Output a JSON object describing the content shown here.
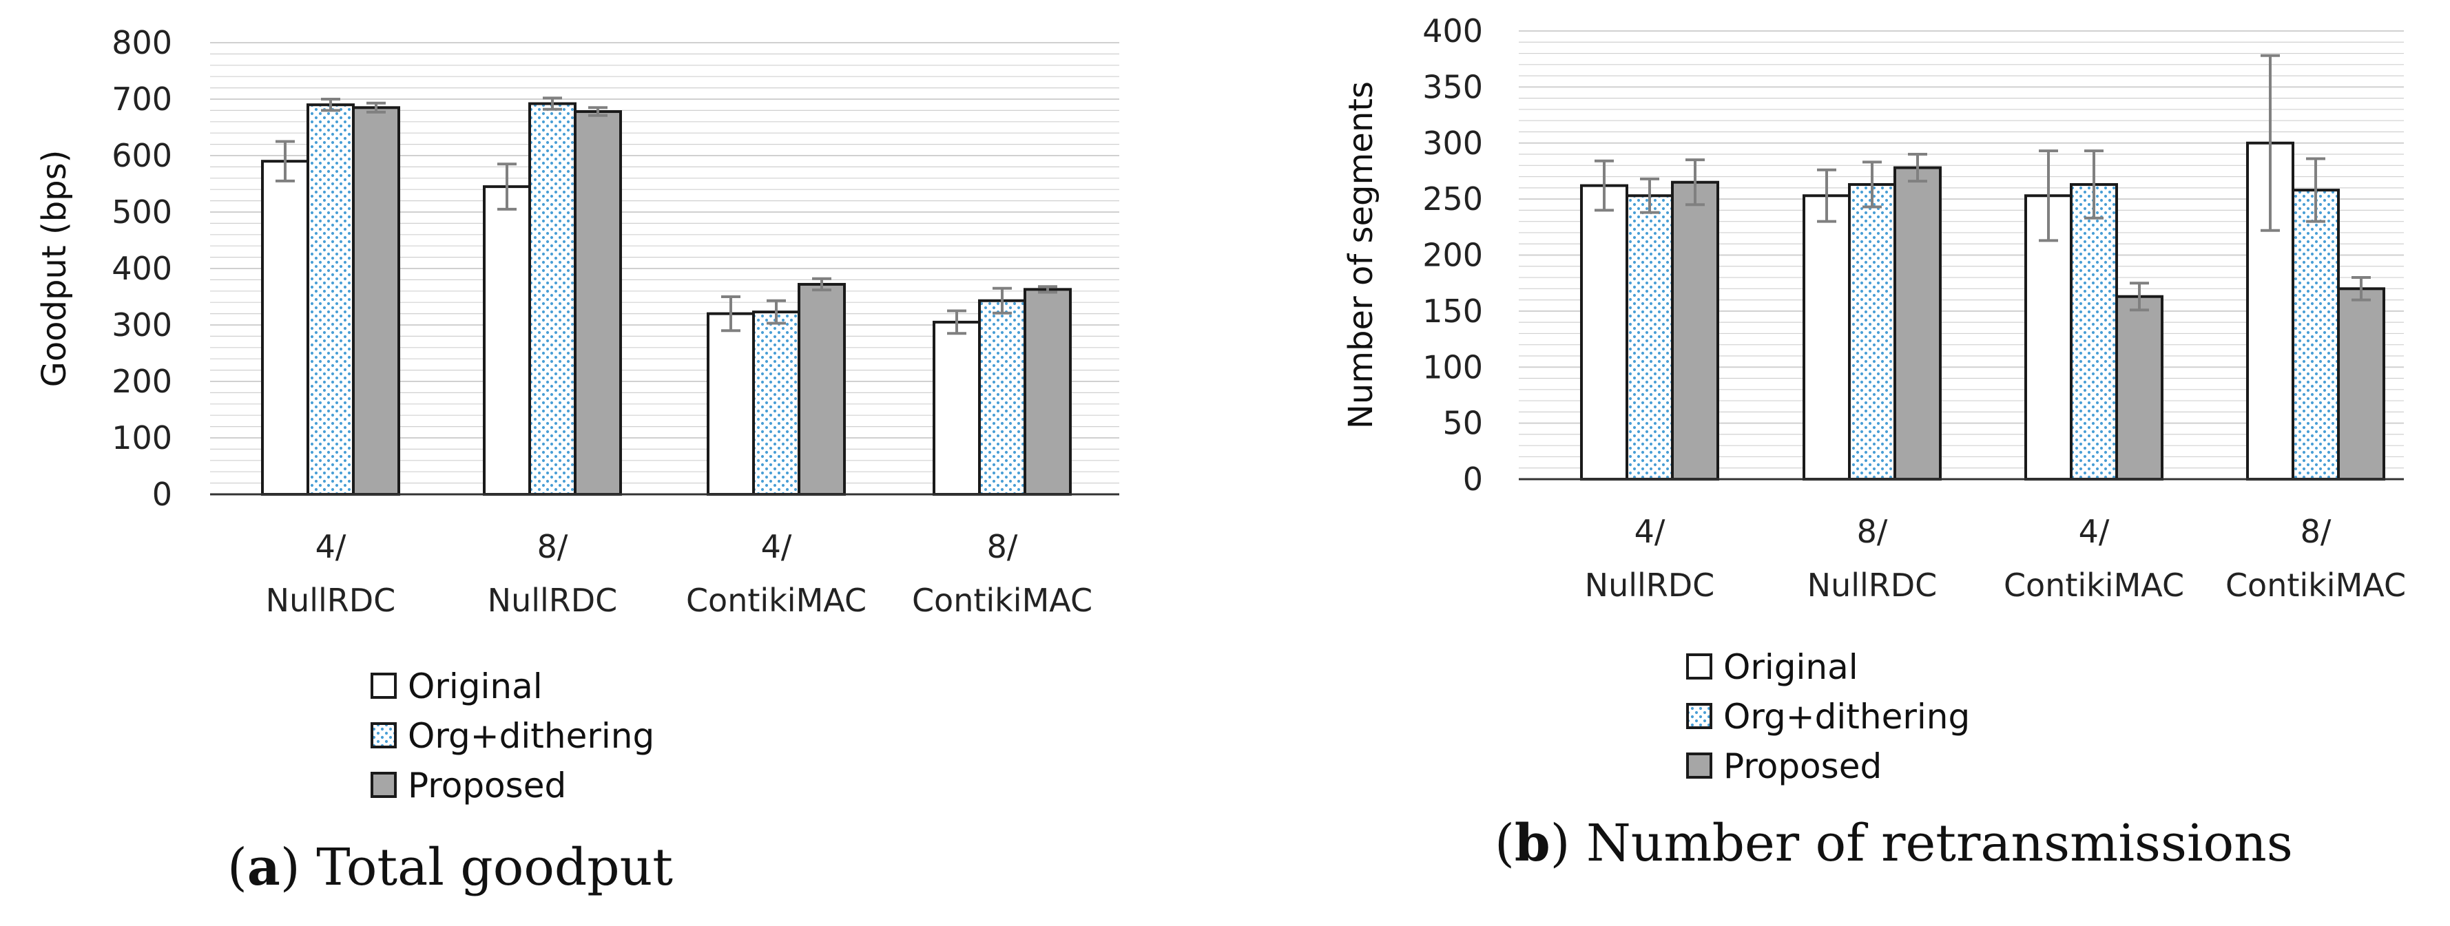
{
  "colors": {
    "original": "#ffffff",
    "dither_base": "#ffffff",
    "dither_dot": "#4a9fd6",
    "proposed": "#a6a6a6",
    "outline": "#1a1a1a",
    "grid": "#d0d0d0",
    "error_bar": "#808080"
  },
  "series_names": [
    "Original",
    "Org+dithering",
    "Proposed"
  ],
  "chart_data": [
    {
      "type": "bar",
      "caption_letter": "a",
      "caption_text": " Total goodput",
      "ylabel": "Goodput (bps)",
      "xlabel": "",
      "ylim": [
        0,
        800
      ],
      "yticks": [
        "0",
        "100",
        "200",
        "300",
        "400",
        "500",
        "600",
        "700",
        "800"
      ],
      "grid": true,
      "legend": "bottom",
      "categories": [
        {
          "top": "4/",
          "bottom": "NullRDC"
        },
        {
          "top": "8/",
          "bottom": "NullRDC"
        },
        {
          "top": "4/",
          "bottom": "ContikiMAC"
        },
        {
          "top": "8/",
          "bottom": "ContikiMAC"
        }
      ],
      "series": [
        {
          "name": "Original",
          "values": [
            590,
            545,
            320,
            305
          ],
          "errors": [
            35,
            40,
            30,
            20
          ]
        },
        {
          "name": "Org+dithering",
          "values": [
            690,
            692,
            323,
            343
          ],
          "errors": [
            10,
            10,
            20,
            22
          ]
        },
        {
          "name": "Proposed",
          "values": [
            685,
            678,
            372,
            363
          ],
          "errors": [
            8,
            7,
            10,
            5
          ]
        }
      ]
    },
    {
      "type": "bar",
      "caption_letter": "b",
      "caption_text": " Number of retransmissions",
      "ylabel": "Number of segments",
      "xlabel": "",
      "ylim": [
        0,
        400
      ],
      "yticks": [
        "0",
        "50",
        "100",
        "150",
        "200",
        "250",
        "300",
        "350",
        "400"
      ],
      "grid": true,
      "legend": "bottom",
      "categories": [
        {
          "top": "4/",
          "bottom": "NullRDC"
        },
        {
          "top": "8/",
          "bottom": "NullRDC"
        },
        {
          "top": "4/",
          "bottom": "ContikiMAC"
        },
        {
          "top": "8/",
          "bottom": "ContikiMAC"
        }
      ],
      "series": [
        {
          "name": "Original",
          "values": [
            262,
            253,
            253,
            300
          ],
          "errors": [
            22,
            23,
            40,
            78
          ]
        },
        {
          "name": "Org+dithering",
          "values": [
            253,
            263,
            263,
            258
          ],
          "errors": [
            15,
            20,
            30,
            28
          ]
        },
        {
          "name": "Proposed",
          "values": [
            265,
            278,
            163,
            170
          ],
          "errors": [
            20,
            12,
            12,
            10
          ]
        }
      ]
    }
  ]
}
